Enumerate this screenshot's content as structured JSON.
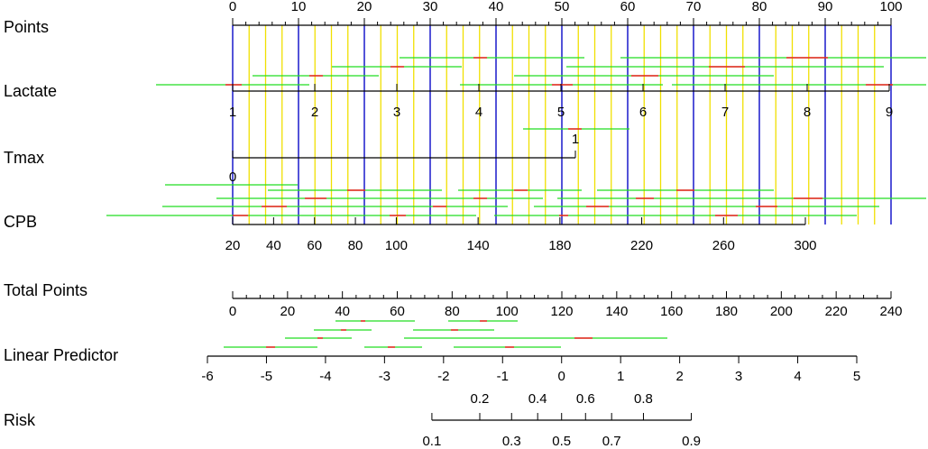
{
  "chart_data": {
    "type": "nomogram",
    "axes": [
      {
        "name": "Points",
        "xlim": [
          0,
          100
        ],
        "ticks": [
          0,
          10,
          20,
          30,
          40,
          50,
          60,
          70,
          80,
          90,
          100
        ],
        "minor_ticks": [
          2,
          4,
          6,
          8,
          12,
          14,
          16,
          18,
          22,
          24,
          26,
          28,
          32,
          34,
          36,
          38,
          42,
          44,
          46,
          48,
          52,
          54,
          56,
          58,
          62,
          64,
          66,
          68,
          72,
          74,
          76,
          78,
          82,
          84,
          86,
          88,
          92,
          94,
          96,
          98
        ]
      },
      {
        "name": "Lactate",
        "xlim": [
          1,
          9
        ],
        "ticks": [
          1,
          2,
          3,
          4,
          5,
          6,
          7,
          8,
          9
        ]
      },
      {
        "name": "Tmax",
        "xlim": [
          0,
          1
        ],
        "ticks": [
          0,
          1
        ]
      },
      {
        "name": "CPB",
        "xlim": [
          20,
          300
        ],
        "ticks": [
          20,
          40,
          60,
          80,
          100,
          140,
          180,
          220,
          260,
          300
        ]
      },
      {
        "name": "Total Points",
        "xlim": [
          0,
          240
        ],
        "ticks": [
          0,
          20,
          40,
          60,
          80,
          100,
          120,
          140,
          160,
          180,
          200,
          220,
          240
        ],
        "minor_ticks": [
          5,
          10,
          15,
          25,
          30,
          35,
          45,
          50,
          55,
          65,
          70,
          75,
          85,
          90,
          95,
          105,
          110,
          115,
          125,
          130,
          135,
          145,
          150,
          155,
          165,
          170,
          175,
          185,
          190,
          195,
          205,
          210,
          215,
          225,
          230,
          235
        ]
      },
      {
        "name": "Linear Predictor",
        "xlim": [
          -6,
          5
        ],
        "ticks": [
          -6,
          -5,
          -4,
          -3,
          -2,
          -1,
          0,
          1,
          2,
          3,
          4,
          5
        ]
      },
      {
        "name": "Risk",
        "xlim": [
          0.1,
          0.9
        ],
        "scale": "logit",
        "ticks": [
          0.1,
          0.2,
          0.3,
          0.4,
          0.5,
          0.6,
          0.7,
          0.8,
          0.9
        ]
      }
    ]
  }
}
